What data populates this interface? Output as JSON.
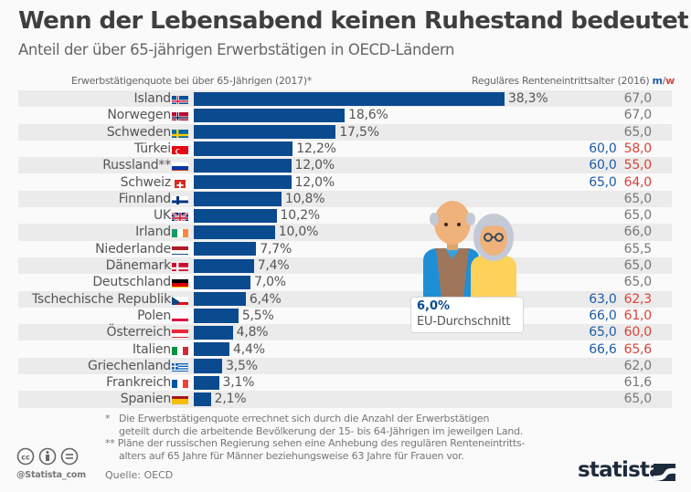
{
  "header": {
    "title": "Wenn der Lebensabend keinen Ruhestand bedeutet",
    "subtitle": "Anteil der über 65-jährigen Erwerbstätigen in OECD-Ländern"
  },
  "columns": {
    "left_header": "Erwerbstätigenquote bei über 65-Jährigen (2017)*",
    "right_header": "Reguläres Renteneintrittsalter (2016)",
    "right_header_m": "m",
    "right_header_sep": "/",
    "right_header_w": "w"
  },
  "colors": {
    "bar": "#0a4a8f",
    "men": "#1f5ca8",
    "women": "#d9433a",
    "stripe": "#ebebeb"
  },
  "chart_data": {
    "type": "bar",
    "orientation": "horizontal",
    "title": "Wenn der Lebensabend keinen Ruhestand bedeutet",
    "subtitle": "Anteil der über 65-jährigen Erwerbstätigen in OECD-Ländern",
    "xlabel": "Erwerbstätigenquote bei über 65-Jährigen (2017)*",
    "unit": "%",
    "grid": false,
    "categories": [
      "Island",
      "Norwegen",
      "Schweden",
      "Türkei",
      "Russland**",
      "Schweiz",
      "Finnland",
      "UK",
      "Irland",
      "Niederlande",
      "Dänemark",
      "Deutschland",
      "Tschechische Republik",
      "Polen",
      "Österreich",
      "Italien",
      "Griechenland",
      "Frankreich",
      "Spanien"
    ],
    "values": [
      38.3,
      18.6,
      17.5,
      12.2,
      12.0,
      12.0,
      10.8,
      10.2,
      10.0,
      7.7,
      7.4,
      7.0,
      6.4,
      5.5,
      4.8,
      4.4,
      3.5,
      3.1,
      2.1
    ],
    "value_labels": [
      "38,3%",
      "18,6%",
      "17,5%",
      "12,2%",
      "12,0%",
      "12,0%",
      "10,8%",
      "10,2%",
      "10,0%",
      "7,7%",
      "7,4%",
      "7,0%",
      "6,4%",
      "5,5%",
      "4,8%",
      "4,4%",
      "3,5%",
      "3,1%",
      "2,1%"
    ],
    "flags": [
      "flag-iceland",
      "flag-norway",
      "flag-sweden",
      "flag-turkey",
      "flag-russia",
      "flag-switzerland",
      "flag-finland",
      "flag-uk",
      "flag-ireland",
      "flag-netherlands",
      "flag-denmark",
      "flag-germany",
      "flag-czech",
      "flag-poland",
      "flag-austria",
      "flag-italy",
      "flag-greece",
      "flag-france",
      "flag-spain"
    ],
    "retirement_age": [
      {
        "all": "67,0"
      },
      {
        "all": "67,0"
      },
      {
        "all": "65,0"
      },
      {
        "m": "60,0",
        "w": "58,0"
      },
      {
        "m": "60,0",
        "w": "55,0"
      },
      {
        "m": "65,0",
        "w": "64,0"
      },
      {
        "all": "65,0"
      },
      {
        "all": "65,0"
      },
      {
        "all": "66,0"
      },
      {
        "all": "65,5"
      },
      {
        "all": "65,0"
      },
      {
        "all": "65,0"
      },
      {
        "m": "63,0",
        "w": "62,3"
      },
      {
        "m": "66,0",
        "w": "61,0"
      },
      {
        "m": "65,0",
        "w": "60,0"
      },
      {
        "m": "66,6",
        "w": "65,6"
      },
      {
        "all": "62,0"
      },
      {
        "all": "61,6"
      },
      {
        "all": "65,0"
      }
    ],
    "annotation": {
      "value": 6.0,
      "value_label": "6,0%",
      "label": "EU-Durchschnitt"
    }
  },
  "footer": {
    "note1_marker": "*",
    "note1_line1": "Die Erwerbstätigenquote errechnet sich durch die Anzahl der Erwerbstätigen",
    "note1_line2": "geteilt durch die arbeitende Bevölkerung der 15- bis 64-Jährigen im jeweilgen Land.",
    "note2_marker": "**",
    "note2_line1": "Pläne der russischen Regierung sehen eine Anhebung des regulären Renteneintritts-",
    "note2_line2": "alters auf 65 Jahre für Männer beziehungsweise 63 Jahre für Frauen vor.",
    "source": "Quelle: OECD",
    "handle": "@Statista_com",
    "logo": "statista"
  }
}
